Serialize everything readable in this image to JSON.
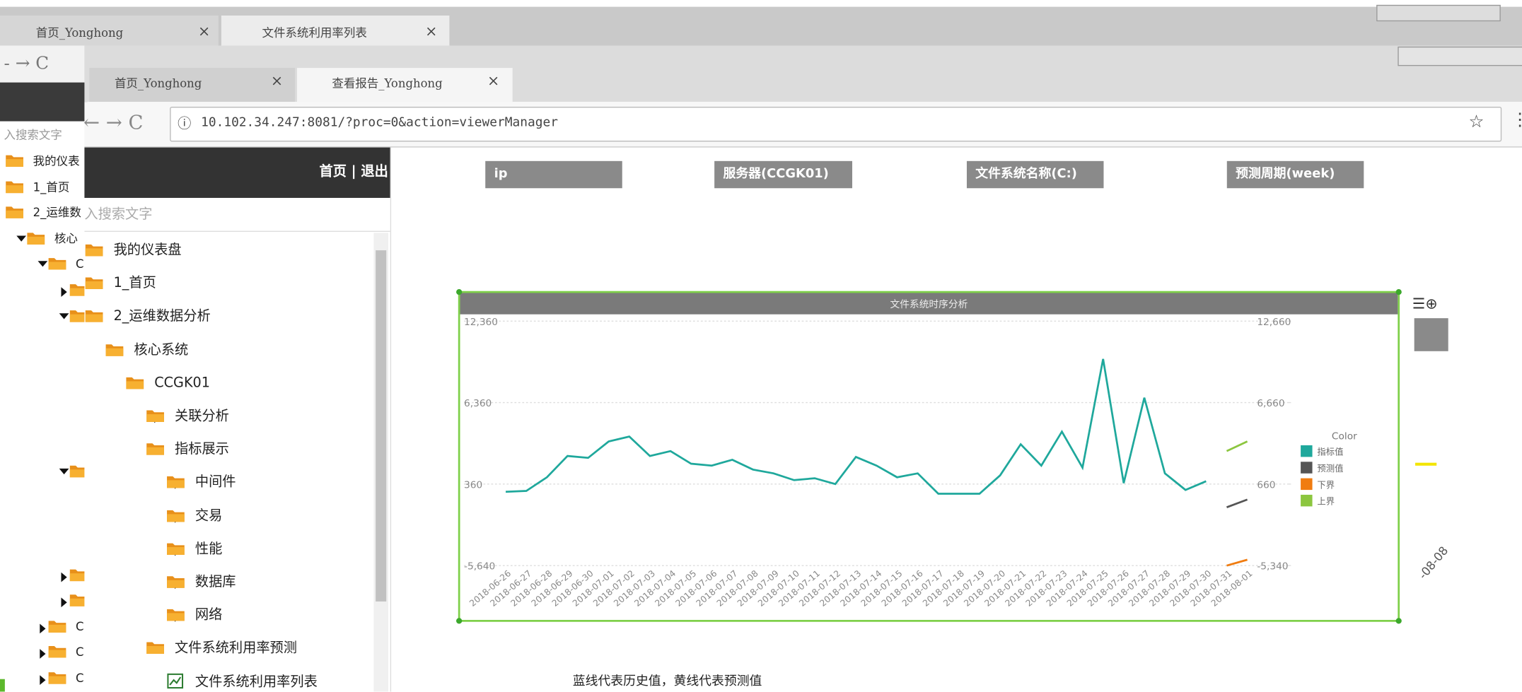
{
  "back_window": {
    "tabs": [
      "首页_Yonghong",
      "文件系统利用率列表"
    ],
    "search_placeholder": "入搜索文字",
    "tree": [
      "我的仪表",
      "1_首页",
      "2_运维数",
      "核心",
      "C",
      "C",
      "C",
      "C"
    ]
  },
  "front_window": {
    "tabs": [
      "首页_Yonghong",
      "查看报告_Yonghong"
    ],
    "url": "10.102.34.247:8081/?proc=0&action=viewerManager"
  },
  "sidebar": {
    "header_links": "首页 | 退出",
    "search_placeholder": "入搜索文字",
    "tree": [
      "我的仪表盘",
      "1_首页",
      "2_运维数据分析",
      "核心系统",
      "CCGK01",
      "关联分析",
      "指标展示",
      "中间件",
      "交易",
      "性能",
      "数据库",
      "网络",
      "文件系统利用率预测",
      "文件系统利用率列表"
    ]
  },
  "filters": [
    "ip",
    "服务器(CCGK01)",
    "文件系统名称(C:)",
    "预测周期(week)"
  ],
  "chart_data": {
    "type": "line",
    "title": "文件系统时序分析",
    "legend_title": "Color",
    "categories": [
      "2018-06-26",
      "2018-06-27",
      "2018-06-28",
      "2018-06-29",
      "2018-06-30",
      "2018-07-01",
      "2018-07-02",
      "2018-07-03",
      "2018-07-04",
      "2018-07-05",
      "2018-07-06",
      "2018-07-07",
      "2018-07-08",
      "2018-07-09",
      "2018-07-10",
      "2018-07-11",
      "2018-07-12",
      "2018-07-13",
      "2018-07-14",
      "2018-07-15",
      "2018-07-16",
      "2018-07-17",
      "2018-07-18",
      "2018-07-19",
      "2018-07-20",
      "2018-07-21",
      "2018-07-22",
      "2018-07-23",
      "2018-07-24",
      "2018-07-25",
      "2018-07-26",
      "2018-07-27",
      "2018-07-28",
      "2018-07-29",
      "2018-07-30",
      "2018-07-31",
      "2018-08-01"
    ],
    "series": [
      {
        "name": "指标值",
        "color": "#1fa89c",
        "values": [
          -210,
          -140,
          860,
          2430,
          2290,
          3500,
          3860,
          2430,
          2790,
          1860,
          1720,
          2150,
          1430,
          1150,
          650,
          790,
          360,
          2360,
          1720,
          860,
          1150,
          -350,
          -350,
          -350,
          1000,
          3290,
          1720,
          4220,
          1570,
          9570,
          430,
          6720,
          1150,
          -70,
          570,
          null,
          null
        ]
      },
      {
        "name": "预测值",
        "color": "#555555",
        "values": [
          null,
          null,
          null,
          null,
          null,
          null,
          null,
          null,
          null,
          null,
          null,
          null,
          null,
          null,
          null,
          null,
          null,
          null,
          null,
          null,
          null,
          null,
          null,
          null,
          null,
          null,
          null,
          null,
          null,
          null,
          null,
          null,
          null,
          null,
          null,
          -1350,
          -780
        ]
      },
      {
        "name": "下界",
        "color": "#f07c10",
        "values": [
          null,
          null,
          null,
          null,
          null,
          null,
          null,
          null,
          null,
          null,
          null,
          null,
          null,
          null,
          null,
          null,
          null,
          null,
          null,
          null,
          null,
          null,
          null,
          null,
          null,
          null,
          null,
          null,
          null,
          null,
          null,
          null,
          null,
          null,
          null,
          -5640,
          -5210
        ]
      },
      {
        "name": "上界",
        "color": "#8cc63f",
        "values": [
          null,
          null,
          null,
          null,
          null,
          null,
          null,
          null,
          null,
          null,
          null,
          null,
          null,
          null,
          null,
          null,
          null,
          null,
          null,
          null,
          null,
          null,
          null,
          null,
          null,
          null,
          null,
          null,
          null,
          null,
          null,
          null,
          null,
          null,
          null,
          2790,
          3500
        ]
      }
    ],
    "ylim": [
      -5640,
      12360
    ],
    "yticks": [
      {
        "value": -5640,
        "label": "-5,640"
      },
      360,
      {
        "value": 6360,
        "label": "6,360"
      },
      {
        "value": 12360,
        "label": "12,360"
      }
    ],
    "y2lim": [
      -5340,
      12660
    ],
    "y2ticks": [
      {
        "value": -5340,
        "label": "-5,340"
      },
      660,
      {
        "value": 6660,
        "label": "6,660"
      },
      {
        "value": 12660,
        "label": "12,660"
      }
    ],
    "grid": true
  },
  "note": "蓝线代表历史值，黄线代表预测值",
  "right_panel_label": "-08-08"
}
